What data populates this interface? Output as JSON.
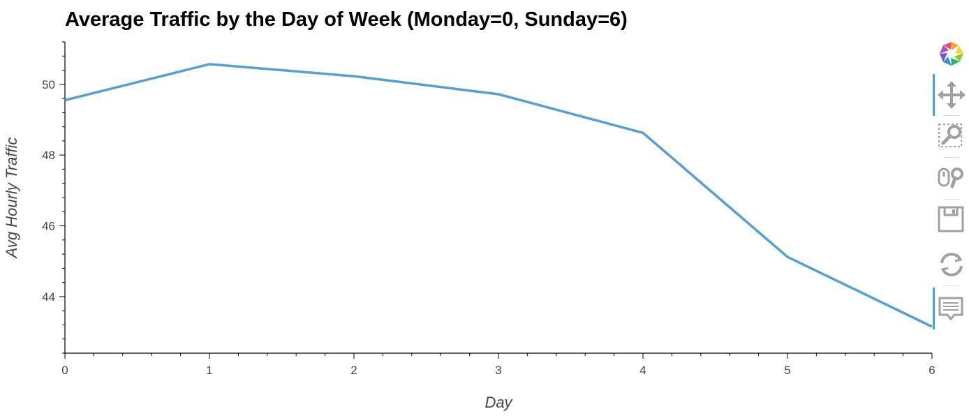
{
  "chart_data": {
    "type": "line",
    "title": "Average Traffic by the Day of Week (Monday=0, Sunday=6)",
    "xlabel": "Day",
    "ylabel": "Avg Hourly Traffic",
    "x": [
      0,
      1,
      2,
      3,
      4,
      5,
      6
    ],
    "series": [
      {
        "values": [
          49.55,
          50.57,
          50.23,
          49.72,
          48.63,
          45.12,
          43.15
        ],
        "color": "#569fd3"
      }
    ],
    "xlim": [
      0,
      6
    ],
    "ylim": [
      42.4,
      51.2
    ],
    "xticks": [
      0,
      1,
      2,
      3,
      4,
      5,
      6
    ],
    "yticks": [
      44,
      46,
      48,
      50
    ],
    "grid": false,
    "legend": "none"
  },
  "toolbar": {
    "tools": [
      {
        "name": "bokeh-logo",
        "icon": "bokeh-logo-icon"
      },
      {
        "name": "pan",
        "icon": "pan-icon",
        "active": true
      },
      {
        "name": "box-zoom",
        "icon": "box-zoom-icon"
      },
      {
        "name": "wheel-zoom",
        "icon": "wheel-zoom-icon"
      },
      {
        "name": "save",
        "icon": "save-icon"
      },
      {
        "name": "reset",
        "icon": "reset-icon"
      },
      {
        "name": "hover",
        "icon": "hover-icon",
        "active": true
      }
    ]
  }
}
